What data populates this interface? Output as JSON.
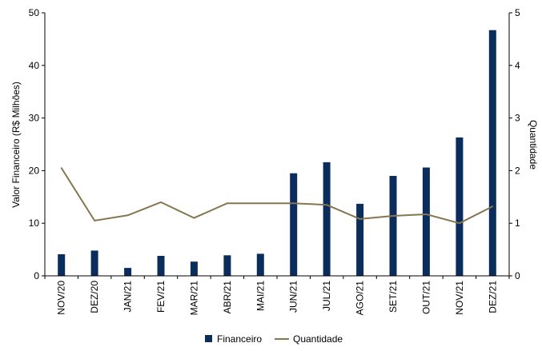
{
  "chart_data": {
    "type": "bar",
    "categories": [
      "NOV/20",
      "DEZ/20",
      "JAN/21",
      "FEV/21",
      "MAR/21",
      "ABR/21",
      "MAI/21",
      "JUN/21",
      "JUL/21",
      "AGO/21",
      "SET/21",
      "OUT/21",
      "NOV/21",
      "DEZ/21"
    ],
    "series": [
      {
        "name": "Financeiro",
        "type": "bar",
        "axis": "left",
        "color": "#0b2d5b",
        "values": [
          4.1,
          4.8,
          1.5,
          3.8,
          2.7,
          3.9,
          4.2,
          19.5,
          21.6,
          13.7,
          19.0,
          20.6,
          26.3,
          46.7
        ]
      },
      {
        "name": "Quantidade",
        "type": "line",
        "axis": "right",
        "color": "#857650",
        "values": [
          2.05,
          1.05,
          1.15,
          1.4,
          1.1,
          1.38,
          1.38,
          1.38,
          1.35,
          1.08,
          1.14,
          1.17,
          1.0,
          1.32
        ]
      }
    ],
    "ylabel": "Valor Financeiro (R$ Milhões)",
    "ylabel_right": "Quantidade",
    "ylim": [
      0,
      50
    ],
    "yticks": [
      "0",
      "10",
      "20",
      "30",
      "40",
      "50"
    ],
    "ylim_right": [
      0,
      5
    ],
    "yticks_right": [
      "0",
      "1",
      "2",
      "3",
      "4",
      "5"
    ],
    "grid": false,
    "legend_position": "bottom"
  }
}
